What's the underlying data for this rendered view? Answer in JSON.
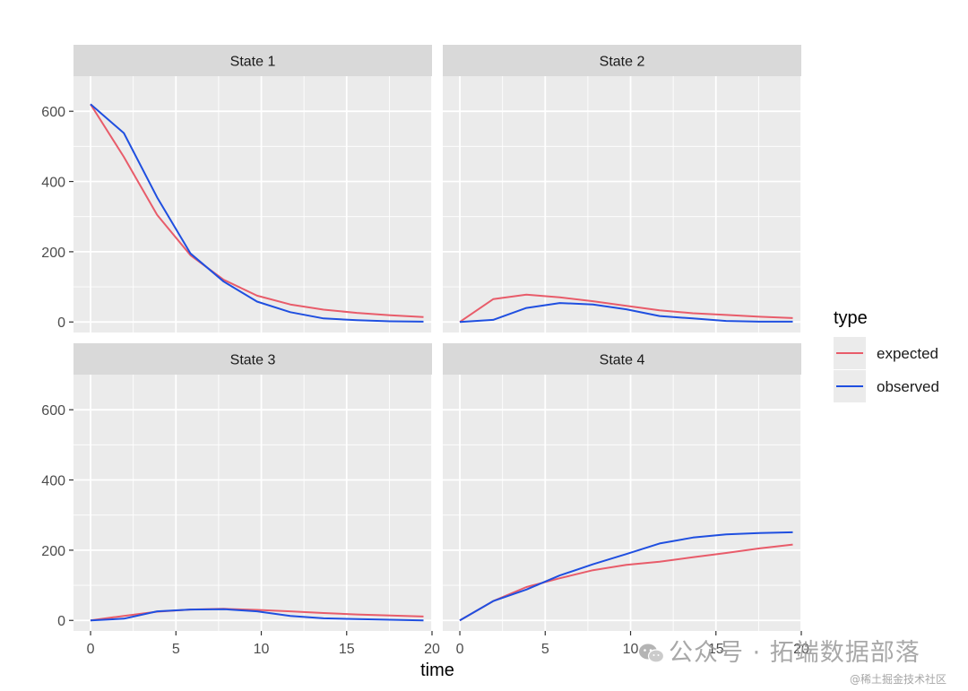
{
  "chart_data": {
    "type": "line",
    "layout": "facet-grid-2x2",
    "xlabel": "time",
    "ylabel": "",
    "xlim": [
      -1,
      20
    ],
    "ylim": [
      -30,
      700
    ],
    "x_ticks": [
      0,
      5,
      10,
      15,
      20
    ],
    "y_ticks": [
      0,
      200,
      400,
      600
    ],
    "grid": true,
    "legend": {
      "title": "type",
      "position": "right",
      "entries": [
        {
          "label": "expected",
          "color": "#E85C6A"
        },
        {
          "label": "observed",
          "color": "#1F4FE0"
        }
      ]
    },
    "x": [
      0,
      1.95,
      3.9,
      5.85,
      7.8,
      9.75,
      11.7,
      13.65,
      15.6,
      17.55,
      19.5
    ],
    "panels": [
      {
        "title": "State 1",
        "series": [
          {
            "name": "expected",
            "values": [
              620,
              470,
              305,
              190,
              120,
              75,
              50,
              35,
              26,
              19,
              14
            ]
          },
          {
            "name": "observed",
            "values": [
              620,
              538,
              355,
              195,
              115,
              58,
              28,
              10,
              5,
              2,
              1
            ]
          }
        ]
      },
      {
        "title": "State 2",
        "series": [
          {
            "name": "expected",
            "values": [
              0,
              65,
              78,
              70,
              59,
              46,
              33,
              25,
              20,
              15,
              11
            ]
          },
          {
            "name": "observed",
            "values": [
              0,
              6,
              40,
              54,
              50,
              36,
              17,
              10,
              3,
              1,
              1
            ]
          }
        ]
      },
      {
        "title": "State 3",
        "series": [
          {
            "name": "expected",
            "values": [
              0,
              13,
              25,
              31,
              33,
              30,
              26,
              21,
              17,
              14,
              11
            ]
          },
          {
            "name": "observed",
            "values": [
              0,
              5,
              26,
              31,
              32,
              26,
              13,
              6,
              4,
              2,
              0
            ]
          }
        ]
      },
      {
        "title": "State 4",
        "series": [
          {
            "name": "expected",
            "values": [
              0,
              55,
              95,
              120,
              143,
              158,
              167,
              180,
              192,
              205,
              216
            ]
          },
          {
            "name": "observed",
            "values": [
              0,
              55,
              88,
              128,
              160,
              189,
              219,
              236,
              245,
              249,
              251
            ]
          }
        ]
      }
    ]
  },
  "watermark": {
    "text": "公众号 · 拓端数据部落",
    "subtext": "@稀土掘金技术社区",
    "icon": "wechat-icon"
  }
}
